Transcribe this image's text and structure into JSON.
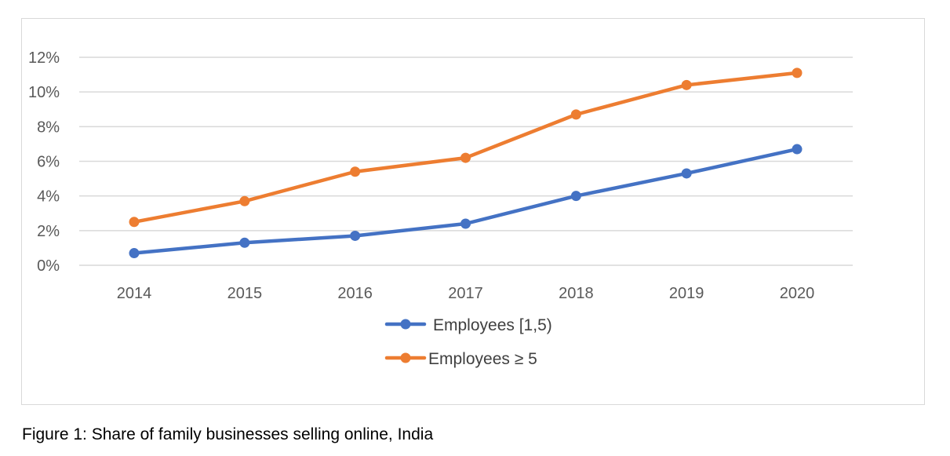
{
  "colors": {
    "series_1": "#4472c4",
    "series_2": "#ed7d31",
    "grid": "#d9d9d9",
    "tick_text": "#595959",
    "legend_text": "#404040",
    "frame_border": "#d9d9d9"
  },
  "chart_data": {
    "type": "line",
    "title": "",
    "xlabel": "",
    "ylabel": "",
    "categories": [
      "2014",
      "2015",
      "2016",
      "2017",
      "2018",
      "2019",
      "2020"
    ],
    "series": [
      {
        "name": "Employees [1,5)",
        "color": "#4472c4",
        "values": [
          0.7,
          1.3,
          1.7,
          2.4,
          4.0,
          5.3,
          6.7
        ]
      },
      {
        "name": "Employees ≥ 5",
        "color": "#ed7d31",
        "values": [
          2.5,
          3.7,
          5.4,
          6.2,
          8.7,
          10.4,
          11.1
        ]
      }
    ],
    "y_unit": "%",
    "ylim": [
      0,
      12
    ],
    "y_ticks": [
      0,
      2,
      4,
      6,
      8,
      10,
      12
    ],
    "y_tick_labels": [
      "0%",
      "2%",
      "4%",
      "6%",
      "8%",
      "10%",
      "12%"
    ],
    "grid": "horizontal",
    "legend_position": "bottom",
    "markers": "circle"
  },
  "caption": "Figure 1: Share of family businesses selling online, India"
}
